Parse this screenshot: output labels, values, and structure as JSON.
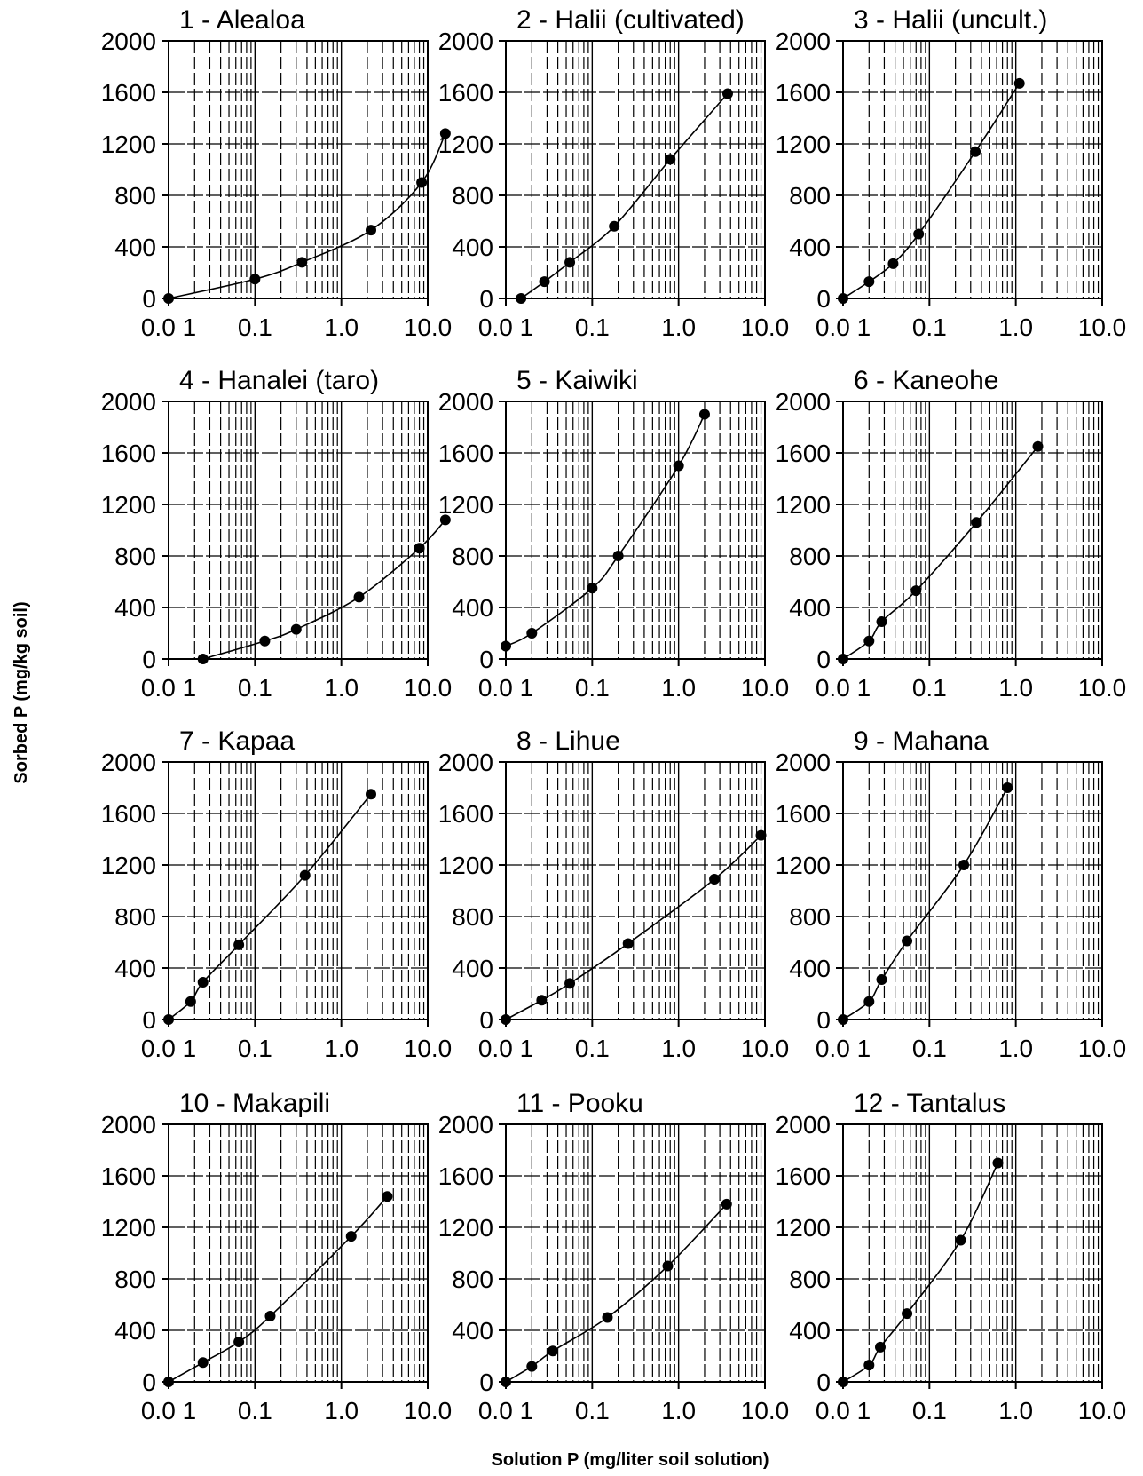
{
  "figure": {
    "xlabel": "Solution P (mg/liter soil solution)",
    "ylabel": "Sorbed P (mg/kg soil)"
  },
  "chart_data": [
    {
      "type": "line",
      "title": "1 - Alealoa",
      "xscale": "log",
      "xlim": [
        0.01,
        10
      ],
      "ylim": [
        0,
        2000
      ],
      "xticks": [
        "0.0 1",
        "0.1",
        "1.0",
        "10.0"
      ],
      "yticks": [
        "0",
        "400",
        "800",
        "1200",
        "1600",
        "2000"
      ],
      "x": [
        0.01,
        0.1,
        0.35,
        2.2,
        8.5,
        16
      ],
      "y": [
        0,
        150,
        280,
        530,
        900,
        1280
      ]
    },
    {
      "type": "line",
      "title": "2 - Halii (cultivated)",
      "xscale": "log",
      "xlim": [
        0.01,
        10
      ],
      "ylim": [
        0,
        2000
      ],
      "xticks": [
        "0.0 1",
        "0.1",
        "1.0",
        "10.0"
      ],
      "yticks": [
        "0",
        "400",
        "800",
        "1200",
        "1600",
        "2000"
      ],
      "x": [
        0.015,
        0.028,
        0.055,
        0.18,
        0.8,
        3.7
      ],
      "y": [
        0,
        130,
        280,
        560,
        1080,
        1590
      ]
    },
    {
      "type": "line",
      "title": "3 - Halii (uncult.)",
      "xscale": "log",
      "xlim": [
        0.01,
        10
      ],
      "ylim": [
        0,
        2000
      ],
      "xticks": [
        "0.0 1",
        "0.1",
        "1.0",
        "10.0"
      ],
      "yticks": [
        "0",
        "400",
        "800",
        "1200",
        "1600",
        "2000"
      ],
      "x": [
        0.01,
        0.02,
        0.038,
        0.075,
        0.34,
        1.1
      ],
      "y": [
        0,
        130,
        270,
        500,
        1140,
        1670
      ]
    },
    {
      "type": "line",
      "title": "4 - Hanalei (taro)",
      "xscale": "log",
      "xlim": [
        0.01,
        10
      ],
      "ylim": [
        0,
        2000
      ],
      "xticks": [
        "0.0 1",
        "0.1",
        "1.0",
        "10.0"
      ],
      "yticks": [
        "0",
        "400",
        "800",
        "1200",
        "1600",
        "2000"
      ],
      "x": [
        0.025,
        0.13,
        0.3,
        1.6,
        8.0,
        16
      ],
      "y": [
        0,
        140,
        230,
        480,
        860,
        1080
      ]
    },
    {
      "type": "line",
      "title": "5 - Kaiwiki",
      "xscale": "log",
      "xlim": [
        0.01,
        10
      ],
      "ylim": [
        0,
        2000
      ],
      "xticks": [
        "0.0 1",
        "0.1",
        "1.0",
        "10.0"
      ],
      "yticks": [
        "0",
        "400",
        "800",
        "1200",
        "1600",
        "2000"
      ],
      "x": [
        0.01,
        0.02,
        0.1,
        0.2,
        1.0,
        2.0
      ],
      "y": [
        100,
        200,
        550,
        800,
        1500,
        1900
      ]
    },
    {
      "type": "line",
      "title": "6 - Kaneohe",
      "xscale": "log",
      "xlim": [
        0.01,
        10
      ],
      "ylim": [
        0,
        2000
      ],
      "xticks": [
        "0.0 1",
        "0.1",
        "1.0",
        "10.0"
      ],
      "yticks": [
        "0",
        "400",
        "800",
        "1200",
        "1600",
        "2000"
      ],
      "x": [
        0.01,
        0.02,
        0.028,
        0.07,
        0.35,
        1.8
      ],
      "y": [
        0,
        140,
        290,
        530,
        1060,
        1650
      ]
    },
    {
      "type": "line",
      "title": "7 - Kapaa",
      "xscale": "log",
      "xlim": [
        0.01,
        10
      ],
      "ylim": [
        0,
        2000
      ],
      "xticks": [
        "0.0 1",
        "0.1",
        "1.0",
        "10.0"
      ],
      "yticks": [
        "0",
        "400",
        "800",
        "1200",
        "1600",
        "2000"
      ],
      "x": [
        0.01,
        0.018,
        0.025,
        0.065,
        0.38,
        2.2
      ],
      "y": [
        0,
        140,
        290,
        580,
        1120,
        1750
      ]
    },
    {
      "type": "line",
      "title": "8 - Lihue",
      "xscale": "log",
      "xlim": [
        0.01,
        10
      ],
      "ylim": [
        0,
        2000
      ],
      "xticks": [
        "0.0 1",
        "0.1",
        "1.0",
        "10.0"
      ],
      "yticks": [
        "0",
        "400",
        "800",
        "1200",
        "1600",
        "2000"
      ],
      "x": [
        0.01,
        0.026,
        0.055,
        0.26,
        2.6,
        9.0
      ],
      "y": [
        0,
        150,
        280,
        590,
        1090,
        1430
      ]
    },
    {
      "type": "line",
      "title": "9 - Mahana",
      "xscale": "log",
      "xlim": [
        0.01,
        10
      ],
      "ylim": [
        0,
        2000
      ],
      "xticks": [
        "0.0 1",
        "0.1",
        "1.0",
        "10.0"
      ],
      "yticks": [
        "0",
        "400",
        "800",
        "1200",
        "1600",
        "2000"
      ],
      "x": [
        0.01,
        0.02,
        0.028,
        0.055,
        0.25,
        0.8
      ],
      "y": [
        0,
        140,
        310,
        610,
        1200,
        1800
      ]
    },
    {
      "type": "line",
      "title": "10 - Makapili",
      "xscale": "log",
      "xlim": [
        0.01,
        10
      ],
      "ylim": [
        0,
        2000
      ],
      "xticks": [
        "0.0 1",
        "0.1",
        "1.0",
        "10.0"
      ],
      "yticks": [
        "0",
        "400",
        "800",
        "1200",
        "1600",
        "2000"
      ],
      "x": [
        0.01,
        0.025,
        0.065,
        0.15,
        1.3,
        3.4
      ],
      "y": [
        0,
        150,
        310,
        510,
        1130,
        1440
      ]
    },
    {
      "type": "line",
      "title": "11 - Pooku",
      "xscale": "log",
      "xlim": [
        0.01,
        10
      ],
      "ylim": [
        0,
        2000
      ],
      "xticks": [
        "0.0 1",
        "0.1",
        "1.0",
        "10.0"
      ],
      "yticks": [
        "0",
        "400",
        "800",
        "1200",
        "1600",
        "2000"
      ],
      "x": [
        0.01,
        0.02,
        0.035,
        0.15,
        0.75,
        3.6
      ],
      "y": [
        0,
        120,
        240,
        500,
        900,
        1380
      ]
    },
    {
      "type": "line",
      "title": "12 - Tantalus",
      "xscale": "log",
      "xlim": [
        0.01,
        10
      ],
      "ylim": [
        0,
        2000
      ],
      "xticks": [
        "0.0 1",
        "0.1",
        "1.0",
        "10.0"
      ],
      "yticks": [
        "0",
        "400",
        "800",
        "1200",
        "1600",
        "2000"
      ],
      "x": [
        0.01,
        0.02,
        0.027,
        0.055,
        0.23,
        0.62
      ],
      "y": [
        0,
        130,
        270,
        530,
        1100,
        1700
      ]
    }
  ]
}
